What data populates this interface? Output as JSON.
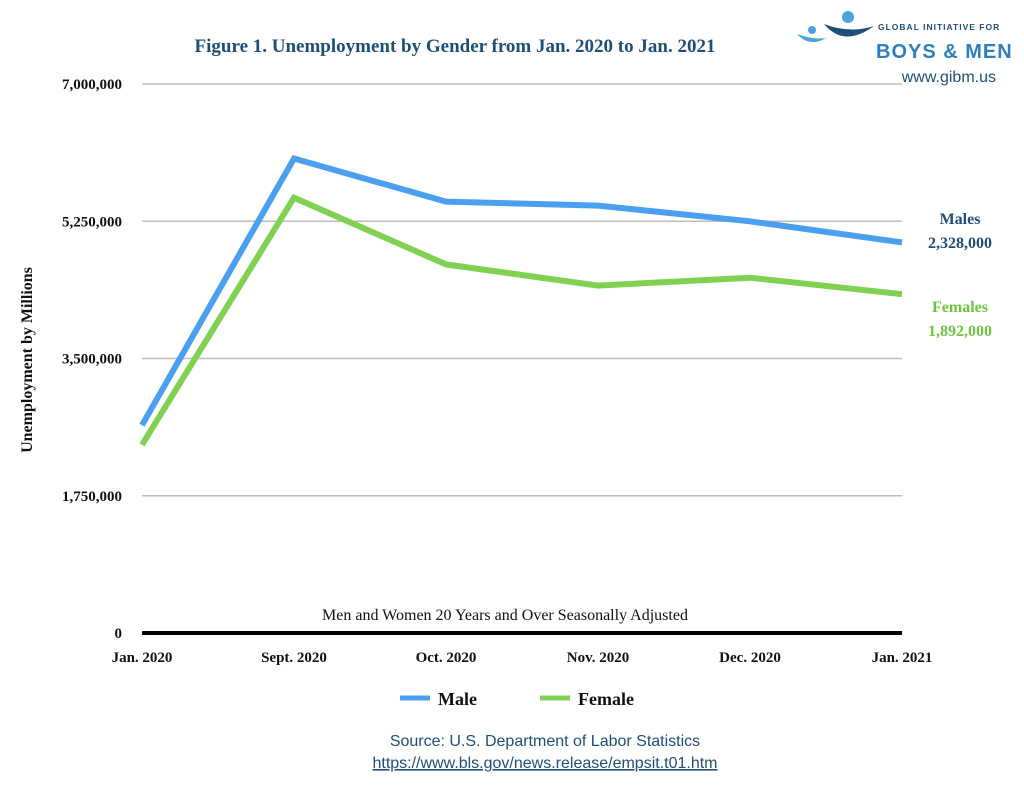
{
  "logo": {
    "line1": "GLOBAL INITIATIVE FOR",
    "line2": "BOYS & MEN",
    "url": "www.gibm.us",
    "colors": {
      "dark": "#1f4e79",
      "light": "#4aa3df"
    }
  },
  "source": {
    "line1": "Source: U.S. Department of Labor Statistics",
    "line2": "https://www.bls.gov/news.release/empsit.t01.htm"
  },
  "chart_data": {
    "type": "line",
    "title": "Figure 1. Unemployment by Gender from Jan. 2020 to Jan. 2021",
    "subtitle": "Men and Women 20 Years and Over Seasonally Adjusted",
    "xlabel": "",
    "ylabel": "Unemployment by Millions",
    "categories": [
      "Jan. 2020",
      "Sept. 2020",
      "Oct. 2020",
      "Nov. 2020",
      "Dec. 2020",
      "Jan. 2021"
    ],
    "yticks": [
      0,
      1750000,
      3500000,
      5250000,
      7000000
    ],
    "ytick_labels": [
      "0",
      "1,750,000",
      "3,500,000",
      "5,250,000",
      "7,000,000"
    ],
    "ylim": [
      0,
      7000000
    ],
    "grid": true,
    "legend_position": "bottom",
    "series": [
      {
        "name": "Male",
        "color": "#4a9ff0",
        "values": [
          2650000,
          6050000,
          5500000,
          5450000,
          5250000,
          4980000
        ]
      },
      {
        "name": "Female",
        "color": "#80d152",
        "values": [
          2400000,
          5550000,
          4700000,
          4430000,
          4530000,
          4320000
        ]
      }
    ],
    "annotations": [
      {
        "series": "Male",
        "label": "Males",
        "value": "2,328,000",
        "color": "#1f4e79"
      },
      {
        "series": "Female",
        "label": "Females",
        "value": "1,892,000",
        "color": "#6cc440"
      }
    ]
  }
}
